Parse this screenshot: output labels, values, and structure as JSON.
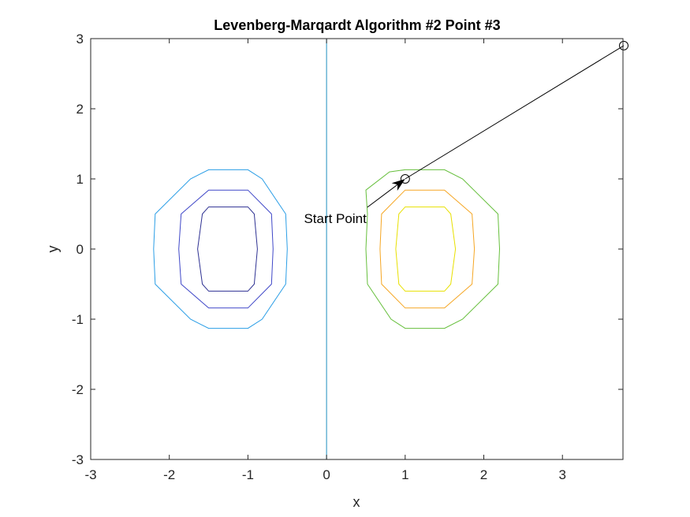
{
  "chart_data": {
    "type": "line",
    "title": "Levenberg-Marqardt Algorithm #2 Point #3",
    "xlabel": "x",
    "ylabel": "y",
    "xlim": [
      -3,
      3.77
    ],
    "ylim": [
      -3,
      3
    ],
    "x_ticks": [
      -3,
      -2,
      -1,
      0,
      1,
      2,
      3
    ],
    "y_ticks": [
      -3,
      -2,
      -1,
      0,
      1,
      2,
      3
    ],
    "x_tick_labels": [
      "-3",
      "-2",
      "-1",
      "0",
      "1",
      "2",
      "3"
    ],
    "y_tick_labels": [
      "-3",
      "-2",
      "-1",
      "0",
      "1",
      "2",
      "3"
    ],
    "grid": false,
    "contours": [
      {
        "color": "#2e3192",
        "points": [
          [
            -1.5,
            0.6
          ],
          [
            -1.0,
            0.6
          ],
          [
            -0.92,
            0.5
          ],
          [
            -0.88,
            0.0
          ],
          [
            -0.92,
            -0.5
          ],
          [
            -1.0,
            -0.6
          ],
          [
            -1.5,
            -0.6
          ],
          [
            -1.58,
            -0.5
          ],
          [
            -1.64,
            0.0
          ],
          [
            -1.58,
            0.5
          ]
        ]
      },
      {
        "color": "#3f47c8",
        "points": [
          [
            -1.5,
            0.84
          ],
          [
            -1.0,
            0.84
          ],
          [
            -0.7,
            0.5
          ],
          [
            -0.68,
            0.0
          ],
          [
            -0.7,
            -0.5
          ],
          [
            -1.0,
            -0.84
          ],
          [
            -1.5,
            -0.84
          ],
          [
            -1.85,
            -0.5
          ],
          [
            -1.88,
            0.0
          ],
          [
            -1.85,
            0.5
          ]
        ]
      },
      {
        "color": "#2b9ee6",
        "points": [
          [
            -1.5,
            1.13
          ],
          [
            -1.0,
            1.13
          ],
          [
            -0.82,
            1.0
          ],
          [
            -0.52,
            0.5
          ],
          [
            -0.5,
            0.0
          ],
          [
            -0.52,
            -0.5
          ],
          [
            -0.82,
            -1.0
          ],
          [
            -1.0,
            -1.13
          ],
          [
            -1.5,
            -1.13
          ],
          [
            -1.73,
            -1.0
          ],
          [
            -2.18,
            -0.5
          ],
          [
            -2.2,
            0.0
          ],
          [
            -2.18,
            0.5
          ],
          [
            -1.73,
            1.0
          ]
        ]
      },
      {
        "color": "#66bf3c",
        "points": [
          [
            0.5,
            0.84
          ],
          [
            0.8,
            1.1
          ],
          [
            1.0,
            1.13
          ],
          [
            1.5,
            1.13
          ],
          [
            1.73,
            1.0
          ],
          [
            2.18,
            0.5
          ],
          [
            2.2,
            0.0
          ],
          [
            2.18,
            -0.5
          ],
          [
            1.73,
            -1.0
          ],
          [
            1.5,
            -1.13
          ],
          [
            1.0,
            -1.13
          ],
          [
            0.82,
            -1.0
          ],
          [
            0.52,
            -0.5
          ],
          [
            0.5,
            0.0
          ],
          [
            0.52,
            0.5
          ]
        ]
      },
      {
        "color": "#f5a623",
        "points": [
          [
            1.0,
            0.84
          ],
          [
            1.5,
            0.84
          ],
          [
            1.85,
            0.5
          ],
          [
            1.88,
            0.0
          ],
          [
            1.85,
            -0.5
          ],
          [
            1.5,
            -0.84
          ],
          [
            1.0,
            -0.84
          ],
          [
            0.7,
            -0.5
          ],
          [
            0.68,
            0.0
          ],
          [
            0.7,
            0.5
          ]
        ]
      },
      {
        "color": "#e8e000",
        "points": [
          [
            1.0,
            0.6
          ],
          [
            1.5,
            0.6
          ],
          [
            1.58,
            0.5
          ],
          [
            1.64,
            0.0
          ],
          [
            1.58,
            -0.5
          ],
          [
            1.5,
            -0.6
          ],
          [
            1.0,
            -0.6
          ],
          [
            0.92,
            -0.5
          ],
          [
            0.88,
            0.0
          ],
          [
            0.92,
            0.5
          ]
        ]
      }
    ],
    "vertical_line": {
      "x": 0,
      "color": "#1f8fbf"
    },
    "path": {
      "color": "#000000",
      "x": [
        3.78,
        1.0
      ],
      "y": [
        2.9,
        1.0
      ]
    },
    "annotation": {
      "text": "Start Point",
      "x": 1.0,
      "y": 1.0
    }
  }
}
